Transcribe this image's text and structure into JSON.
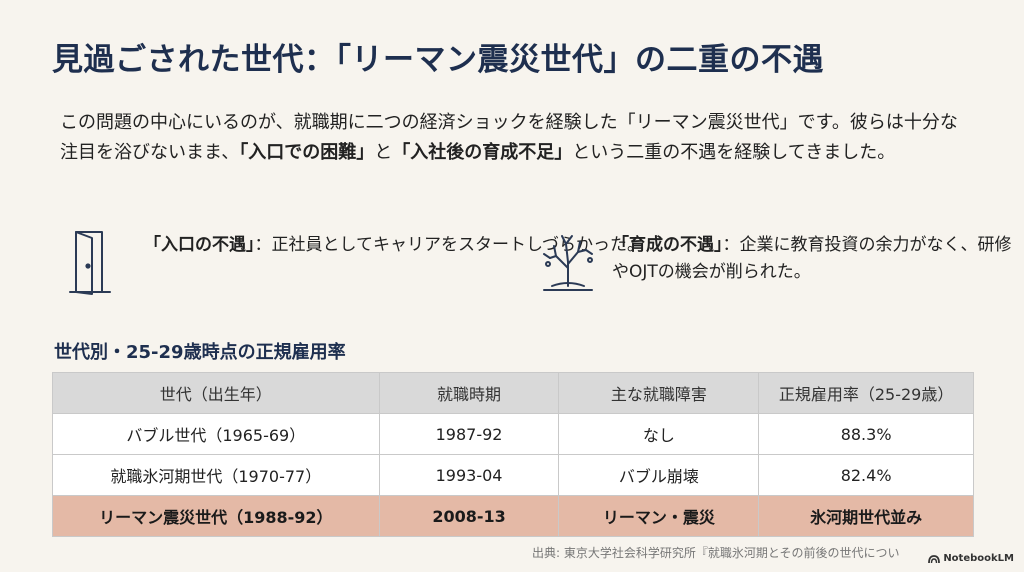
{
  "title": "見過ごされた世代：「リーマン震災世代」の二重の不遇",
  "intro": {
    "part1": "この問題の中心にいるのが、就職期に二つの経済ショックを経験した「リーマン震災世代」です。彼らは十分な注目を浴びないまま、",
    "bold1": "「入口での困難」",
    "part2": "と",
    "bold2": "「入社後の育成不足」",
    "part3": "という二重の不遇を経験してきました。"
  },
  "points": [
    {
      "icon": "open-door-icon",
      "label": "「入口の不遇」",
      "text": "：正社員としてキャリアをスタートしづらかった。"
    },
    {
      "icon": "withered-tree-icon",
      "label": "「育成の不遇」",
      "text": "：企業に教育投資の余力がなく、研修やOJTの機会が削られた。"
    }
  ],
  "table": {
    "title": "世代別・25-29歳時点の正規雇用率",
    "headers": [
      "世代（出生年）",
      "就職時期",
      "主な就職障害",
      "正規雇用率（25-29歳）"
    ],
    "rows": [
      [
        "バブル世代（1965-69）",
        "1987-92",
        "なし",
        "88.3%"
      ],
      [
        "就職氷河期世代（1970-77）",
        "1993-04",
        "バブル崩壊",
        "82.4%"
      ],
      [
        "リーマン震災世代（1988-92）",
        "2008-13",
        "リーマン・震災",
        "氷河期世代並み"
      ]
    ],
    "highlight_color": "#e4b9a6"
  },
  "source": "出典: 東京大学社会科学研究所『就職氷河期とその前後の世代につい",
  "logo": "NotebookLM",
  "colors": {
    "title": "#1e2f4f",
    "background": "#f7f4ee",
    "icon": "#2b3a55"
  }
}
